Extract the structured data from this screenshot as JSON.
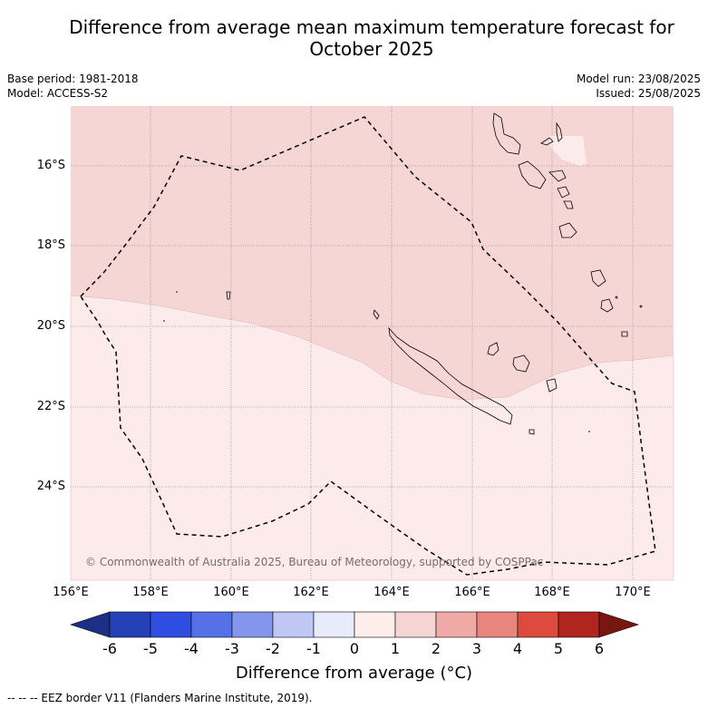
{
  "title_line1": "Difference from average mean maximum temperature forecast for",
  "title_line2": "October 2025",
  "base_period": "Base period: 1981-2018",
  "model": "Model: ACCESS-S2",
  "model_run": "Model run: 23/08/2025",
  "issued": "Issued: 25/08/2025",
  "copyright": "© Commonwealth of Australia 2025, Bureau of Meteorology, supported by COSPPac",
  "lat_labels": [
    "16°S",
    "18°S",
    "20°S",
    "22°S",
    "24°S"
  ],
  "lon_labels": [
    "156°E",
    "158°E",
    "160°E",
    "162°E",
    "164°E",
    "166°E",
    "168°E",
    "170°E"
  ],
  "colorbar": {
    "ticks": [
      "-6",
      "-5",
      "-4",
      "-3",
      "-2",
      "-1",
      "0",
      "1",
      "2",
      "3",
      "4",
      "5",
      "6"
    ],
    "title": "Difference from average (°C)",
    "colors": [
      "#1c2f86",
      "#2441b5",
      "#2f4de0",
      "#5671e8",
      "#8495ec",
      "#c1c7f5",
      "#e8ebfa",
      "#fdeeec",
      "#f5d4d3",
      "#efaaa6",
      "#e8857d",
      "#dc4b3e",
      "#b1251f",
      "#78170f"
    ]
  },
  "legend_text": "--  --  -- EEZ border V11 (Flanders Marine Institute, 2019).",
  "map_colors": {
    "zone_1_2": "#f5d6d5",
    "zone_0_1": "#fcebea"
  }
}
